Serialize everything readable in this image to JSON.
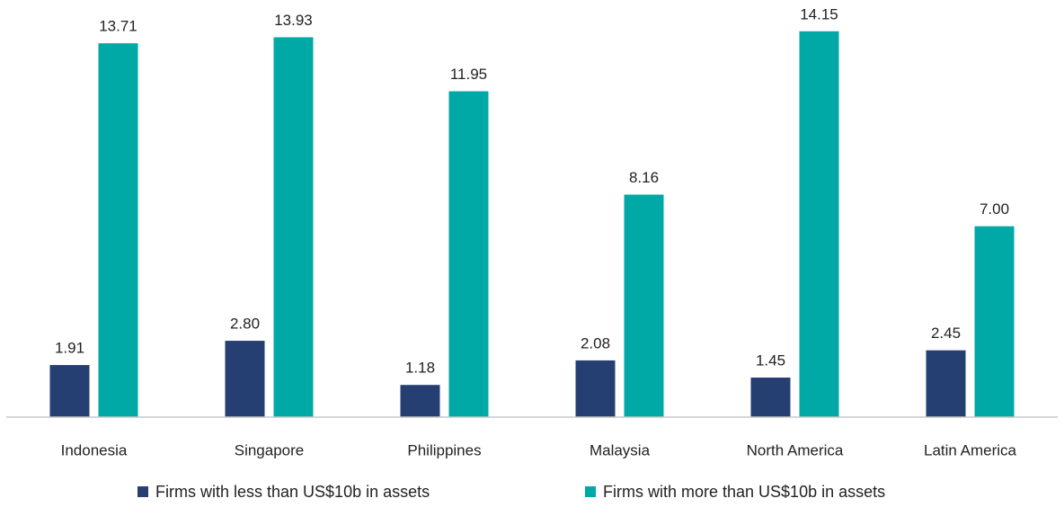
{
  "chart_data": {
    "type": "bar",
    "categories": [
      "Indonesia",
      "Singapore",
      "Philippines",
      "Malaysia",
      "North America",
      "Latin America"
    ],
    "series": [
      {
        "name": "Firms with less than US$10b in assets",
        "color": "#263f73",
        "values": [
          1.91,
          2.8,
          1.18,
          2.08,
          1.45,
          2.45
        ],
        "value_labels": [
          "1.91",
          "2.80",
          "1.18",
          "2.08",
          "1.45",
          "2.45"
        ]
      },
      {
        "name": "Firms with more than US$10b in assets",
        "color": "#00a9a6",
        "values": [
          13.71,
          13.93,
          11.95,
          8.16,
          14.15,
          7.0
        ],
        "value_labels": [
          "13.71",
          "13.93",
          "11.95",
          "8.16",
          "14.15",
          "7.00"
        ]
      }
    ],
    "ylim": [
      0,
      15
    ]
  }
}
